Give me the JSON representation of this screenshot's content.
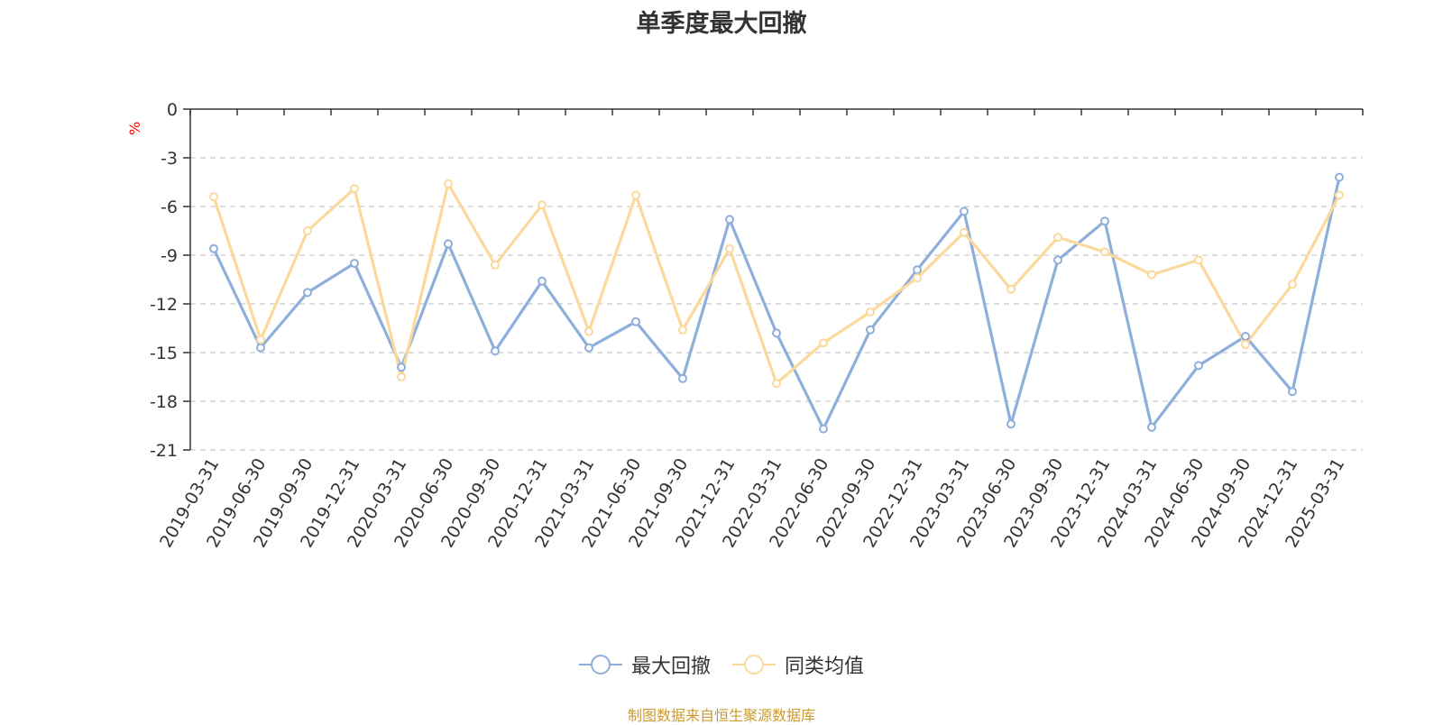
{
  "chart_data": {
    "type": "line",
    "title": "单季度最大回撤",
    "ylabel": "%",
    "ylim": [
      -21,
      0
    ],
    "yticks": [
      0,
      -3,
      -6,
      -9,
      -12,
      -15,
      -18,
      -21
    ],
    "grid": true,
    "legend_position": "bottom",
    "categories": [
      "2019-03-31",
      "2019-06-30",
      "2019-09-30",
      "2019-12-31",
      "2020-03-31",
      "2020-06-30",
      "2020-09-30",
      "2020-12-31",
      "2021-03-31",
      "2021-06-30",
      "2021-09-30",
      "2021-12-31",
      "2022-03-31",
      "2022-06-30",
      "2022-09-30",
      "2022-12-31",
      "2023-03-31",
      "2023-06-30",
      "2023-09-30",
      "2023-12-31",
      "2024-03-31",
      "2024-06-30",
      "2024-09-30",
      "2024-12-31",
      "2025-03-31"
    ],
    "series": [
      {
        "name": "最大回撤",
        "color": "#8eaedb",
        "values": [
          -8.6,
          -14.7,
          -11.3,
          -9.5,
          -15.9,
          -8.3,
          -14.9,
          -10.6,
          -14.7,
          -13.1,
          -16.6,
          -6.8,
          -13.8,
          -19.7,
          -13.6,
          -9.9,
          -6.3,
          -19.4,
          -9.3,
          -6.9,
          -19.6,
          -15.8,
          -14.0,
          -17.4,
          -4.2
        ]
      },
      {
        "name": "同类均值",
        "color": "#fbd99d",
        "values": [
          -5.4,
          -14.2,
          -7.5,
          -4.9,
          -16.5,
          -4.6,
          -9.6,
          -5.9,
          -13.7,
          -5.3,
          -13.6,
          -8.6,
          -16.9,
          -14.4,
          -12.5,
          -10.4,
          -7.6,
          -11.1,
          -7.9,
          -8.8,
          -10.2,
          -9.3,
          -14.5,
          -10.8,
          -5.3
        ]
      }
    ]
  },
  "footer": "制图数据来自恒生聚源数据库"
}
